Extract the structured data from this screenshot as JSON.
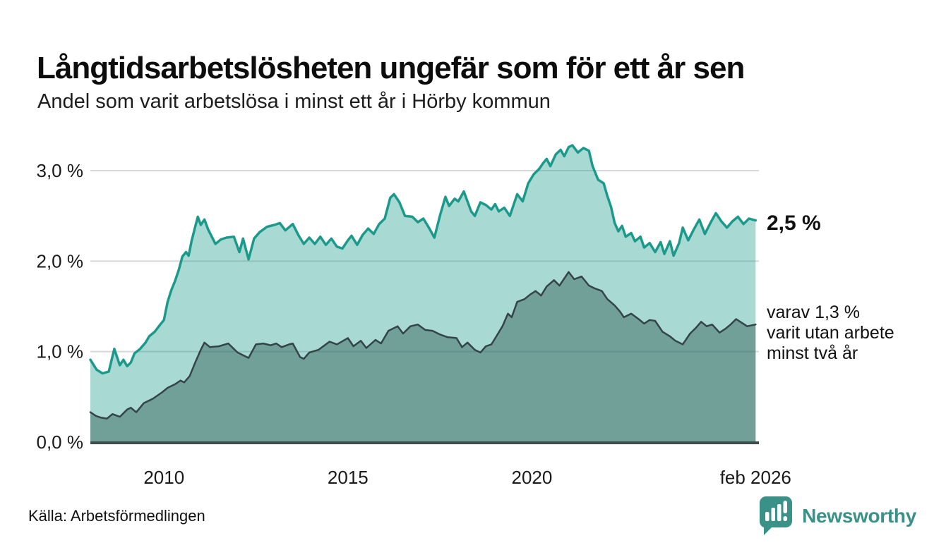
{
  "header": {
    "title": "Långtidsarbetslösheten ungefär som för ett år sen",
    "subtitle": "Andel som varit arbetslösa i minst ett år i Hörby kommun"
  },
  "annotations": {
    "latest_value": "2,5 %",
    "secondary_lines": [
      "varav 1,3 %",
      "varit utan arbete",
      "minst två år"
    ]
  },
  "footer": {
    "source": "Källa: Arbetsförmedlingen",
    "logo_text": "Newsworthy"
  },
  "colors": {
    "teal_line": "#1b9a8c",
    "teal_fill": "rgba(26,154,140,0.38)",
    "dark_line": "#344548",
    "dark_fill": "rgba(45,90,80,0.45)",
    "gridline": "#d8d8dc",
    "axis_line": "#3c4b4d",
    "text": "#1a1a1a",
    "logo_teal": "#3a9188"
  },
  "chart_data": {
    "type": "area",
    "title": "Långtidsarbetslösheten ungefär som för ett år sen",
    "xlabel": "",
    "ylabel": "",
    "xlim": [
      2008.0,
      2026.17
    ],
    "ylim": [
      0,
      3.4
    ],
    "grid": "horizontal",
    "legend_position": "none",
    "y_ticks": [
      {
        "value": 0.0,
        "label": "0,0 %"
      },
      {
        "value": 1.0,
        "label": "1,0 %"
      },
      {
        "value": 2.0,
        "label": "2,0 %"
      },
      {
        "value": 3.0,
        "label": "3,0 %"
      }
    ],
    "x_ticks": [
      {
        "value": 2010,
        "label": "2010"
      },
      {
        "value": 2015,
        "label": "2015"
      },
      {
        "value": 2020,
        "label": "2020"
      },
      {
        "value": 2026.08,
        "label": "feb 2026"
      }
    ],
    "series": [
      {
        "name": "Arbetslösa minst ett år",
        "end_label": "2,5 %",
        "end_value": 2.5,
        "points": [
          [
            2008.0,
            0.91
          ],
          [
            2008.17,
            0.8
          ],
          [
            2008.33,
            0.76
          ],
          [
            2008.5,
            0.78
          ],
          [
            2008.65,
            1.03
          ],
          [
            2008.8,
            0.85
          ],
          [
            2008.9,
            0.91
          ],
          [
            2009.0,
            0.84
          ],
          [
            2009.1,
            0.88
          ],
          [
            2009.2,
            0.98
          ],
          [
            2009.35,
            1.03
          ],
          [
            2009.5,
            1.1
          ],
          [
            2009.6,
            1.17
          ],
          [
            2009.75,
            1.22
          ],
          [
            2009.9,
            1.3
          ],
          [
            2010.0,
            1.35
          ],
          [
            2010.1,
            1.55
          ],
          [
            2010.2,
            1.68
          ],
          [
            2010.3,
            1.78
          ],
          [
            2010.4,
            1.9
          ],
          [
            2010.5,
            2.05
          ],
          [
            2010.6,
            2.1
          ],
          [
            2010.67,
            2.06
          ],
          [
            2010.75,
            2.22
          ],
          [
            2010.85,
            2.38
          ],
          [
            2010.92,
            2.49
          ],
          [
            2011.0,
            2.4
          ],
          [
            2011.1,
            2.46
          ],
          [
            2011.2,
            2.35
          ],
          [
            2011.4,
            2.19
          ],
          [
            2011.55,
            2.24
          ],
          [
            2011.7,
            2.26
          ],
          [
            2011.9,
            2.27
          ],
          [
            2012.05,
            2.1
          ],
          [
            2012.15,
            2.25
          ],
          [
            2012.3,
            2.02
          ],
          [
            2012.45,
            2.25
          ],
          [
            2012.6,
            2.32
          ],
          [
            2012.8,
            2.38
          ],
          [
            2013.0,
            2.4
          ],
          [
            2013.15,
            2.42
          ],
          [
            2013.3,
            2.34
          ],
          [
            2013.5,
            2.41
          ],
          [
            2013.65,
            2.29
          ],
          [
            2013.8,
            2.19
          ],
          [
            2013.95,
            2.26
          ],
          [
            2014.1,
            2.19
          ],
          [
            2014.25,
            2.27
          ],
          [
            2014.4,
            2.18
          ],
          [
            2014.55,
            2.25
          ],
          [
            2014.7,
            2.16
          ],
          [
            2014.85,
            2.14
          ],
          [
            2015.0,
            2.23
          ],
          [
            2015.1,
            2.28
          ],
          [
            2015.25,
            2.18
          ],
          [
            2015.4,
            2.29
          ],
          [
            2015.55,
            2.36
          ],
          [
            2015.7,
            2.3
          ],
          [
            2015.85,
            2.41
          ],
          [
            2016.0,
            2.47
          ],
          [
            2016.15,
            2.7
          ],
          [
            2016.25,
            2.74
          ],
          [
            2016.4,
            2.65
          ],
          [
            2016.55,
            2.5
          ],
          [
            2016.75,
            2.49
          ],
          [
            2016.9,
            2.43
          ],
          [
            2017.05,
            2.47
          ],
          [
            2017.2,
            2.37
          ],
          [
            2017.35,
            2.26
          ],
          [
            2017.5,
            2.5
          ],
          [
            2017.65,
            2.71
          ],
          [
            2017.75,
            2.61
          ],
          [
            2017.9,
            2.69
          ],
          [
            2018.0,
            2.66
          ],
          [
            2018.15,
            2.77
          ],
          [
            2018.35,
            2.55
          ],
          [
            2018.45,
            2.5
          ],
          [
            2018.6,
            2.65
          ],
          [
            2018.75,
            2.62
          ],
          [
            2018.9,
            2.57
          ],
          [
            2019.0,
            2.63
          ],
          [
            2019.1,
            2.55
          ],
          [
            2019.25,
            2.59
          ],
          [
            2019.4,
            2.5
          ],
          [
            2019.6,
            2.74
          ],
          [
            2019.75,
            2.66
          ],
          [
            2019.9,
            2.86
          ],
          [
            2020.05,
            2.96
          ],
          [
            2020.2,
            3.02
          ],
          [
            2020.3,
            3.08
          ],
          [
            2020.4,
            3.13
          ],
          [
            2020.5,
            3.05
          ],
          [
            2020.65,
            3.18
          ],
          [
            2020.78,
            3.23
          ],
          [
            2020.88,
            3.16
          ],
          [
            2021.0,
            3.26
          ],
          [
            2021.1,
            3.28
          ],
          [
            2021.25,
            3.2
          ],
          [
            2021.4,
            3.25
          ],
          [
            2021.55,
            3.22
          ],
          [
            2021.65,
            3.05
          ],
          [
            2021.8,
            2.9
          ],
          [
            2021.95,
            2.86
          ],
          [
            2022.05,
            2.72
          ],
          [
            2022.15,
            2.6
          ],
          [
            2022.25,
            2.42
          ],
          [
            2022.35,
            2.33
          ],
          [
            2022.45,
            2.39
          ],
          [
            2022.55,
            2.27
          ],
          [
            2022.7,
            2.31
          ],
          [
            2022.8,
            2.22
          ],
          [
            2022.95,
            2.27
          ],
          [
            2023.05,
            2.15
          ],
          [
            2023.2,
            2.2
          ],
          [
            2023.35,
            2.1
          ],
          [
            2023.5,
            2.21
          ],
          [
            2023.6,
            2.08
          ],
          [
            2023.75,
            2.22
          ],
          [
            2023.85,
            2.06
          ],
          [
            2024.0,
            2.2
          ],
          [
            2024.1,
            2.37
          ],
          [
            2024.25,
            2.23
          ],
          [
            2024.4,
            2.35
          ],
          [
            2024.55,
            2.46
          ],
          [
            2024.7,
            2.3
          ],
          [
            2024.85,
            2.42
          ],
          [
            2025.0,
            2.53
          ],
          [
            2025.15,
            2.44
          ],
          [
            2025.3,
            2.37
          ],
          [
            2025.45,
            2.44
          ],
          [
            2025.6,
            2.49
          ],
          [
            2025.75,
            2.41
          ],
          [
            2025.9,
            2.47
          ],
          [
            2026.08,
            2.45
          ]
        ]
      },
      {
        "name": "Varav utan arbete minst två år",
        "end_label": "varav 1,3 % varit utan arbete minst två år",
        "end_value": 1.3,
        "points": [
          [
            2008.0,
            0.33
          ],
          [
            2008.15,
            0.29
          ],
          [
            2008.3,
            0.27
          ],
          [
            2008.45,
            0.26
          ],
          [
            2008.6,
            0.31
          ],
          [
            2008.8,
            0.28
          ],
          [
            2009.0,
            0.36
          ],
          [
            2009.1,
            0.38
          ],
          [
            2009.25,
            0.33
          ],
          [
            2009.45,
            0.43
          ],
          [
            2009.7,
            0.48
          ],
          [
            2009.95,
            0.55
          ],
          [
            2010.1,
            0.6
          ],
          [
            2010.3,
            0.64
          ],
          [
            2010.45,
            0.68
          ],
          [
            2010.55,
            0.66
          ],
          [
            2010.7,
            0.73
          ],
          [
            2010.85,
            0.88
          ],
          [
            2011.0,
            1.02
          ],
          [
            2011.1,
            1.1
          ],
          [
            2011.25,
            1.05
          ],
          [
            2011.5,
            1.06
          ],
          [
            2011.75,
            1.09
          ],
          [
            2012.0,
            0.99
          ],
          [
            2012.3,
            0.93
          ],
          [
            2012.5,
            1.08
          ],
          [
            2012.7,
            1.09
          ],
          [
            2012.9,
            1.07
          ],
          [
            2013.05,
            1.09
          ],
          [
            2013.2,
            1.05
          ],
          [
            2013.4,
            1.08
          ],
          [
            2013.5,
            1.09
          ],
          [
            2013.7,
            0.94
          ],
          [
            2013.8,
            0.92
          ],
          [
            2013.95,
            0.99
          ],
          [
            2014.2,
            1.02
          ],
          [
            2014.5,
            1.11
          ],
          [
            2014.7,
            1.08
          ],
          [
            2015.0,
            1.15
          ],
          [
            2015.15,
            1.06
          ],
          [
            2015.35,
            1.12
          ],
          [
            2015.5,
            1.04
          ],
          [
            2015.75,
            1.13
          ],
          [
            2015.9,
            1.09
          ],
          [
            2016.1,
            1.23
          ],
          [
            2016.35,
            1.28
          ],
          [
            2016.5,
            1.2
          ],
          [
            2016.7,
            1.28
          ],
          [
            2016.9,
            1.3
          ],
          [
            2017.1,
            1.24
          ],
          [
            2017.3,
            1.23
          ],
          [
            2017.5,
            1.19
          ],
          [
            2017.7,
            1.16
          ],
          [
            2017.95,
            1.15
          ],
          [
            2018.1,
            1.05
          ],
          [
            2018.25,
            1.1
          ],
          [
            2018.45,
            1.02
          ],
          [
            2018.6,
            0.99
          ],
          [
            2018.75,
            1.06
          ],
          [
            2018.9,
            1.08
          ],
          [
            2019.05,
            1.18
          ],
          [
            2019.2,
            1.28
          ],
          [
            2019.35,
            1.42
          ],
          [
            2019.45,
            1.38
          ],
          [
            2019.6,
            1.55
          ],
          [
            2019.8,
            1.58
          ],
          [
            2019.95,
            1.63
          ],
          [
            2020.1,
            1.67
          ],
          [
            2020.25,
            1.62
          ],
          [
            2020.4,
            1.72
          ],
          [
            2020.6,
            1.79
          ],
          [
            2020.75,
            1.73
          ],
          [
            2021.0,
            1.88
          ],
          [
            2021.15,
            1.8
          ],
          [
            2021.35,
            1.83
          ],
          [
            2021.55,
            1.73
          ],
          [
            2021.7,
            1.7
          ],
          [
            2021.9,
            1.67
          ],
          [
            2022.05,
            1.58
          ],
          [
            2022.25,
            1.51
          ],
          [
            2022.4,
            1.44
          ],
          [
            2022.5,
            1.38
          ],
          [
            2022.7,
            1.42
          ],
          [
            2022.9,
            1.36
          ],
          [
            2023.05,
            1.31
          ],
          [
            2023.2,
            1.35
          ],
          [
            2023.35,
            1.34
          ],
          [
            2023.55,
            1.22
          ],
          [
            2023.75,
            1.17
          ],
          [
            2023.9,
            1.12
          ],
          [
            2024.1,
            1.08
          ],
          [
            2024.3,
            1.2
          ],
          [
            2024.45,
            1.26
          ],
          [
            2024.6,
            1.33
          ],
          [
            2024.75,
            1.28
          ],
          [
            2024.9,
            1.3
          ],
          [
            2025.1,
            1.21
          ],
          [
            2025.25,
            1.25
          ],
          [
            2025.4,
            1.3
          ],
          [
            2025.55,
            1.36
          ],
          [
            2025.7,
            1.32
          ],
          [
            2025.85,
            1.28
          ],
          [
            2026.08,
            1.3
          ]
        ]
      }
    ]
  }
}
